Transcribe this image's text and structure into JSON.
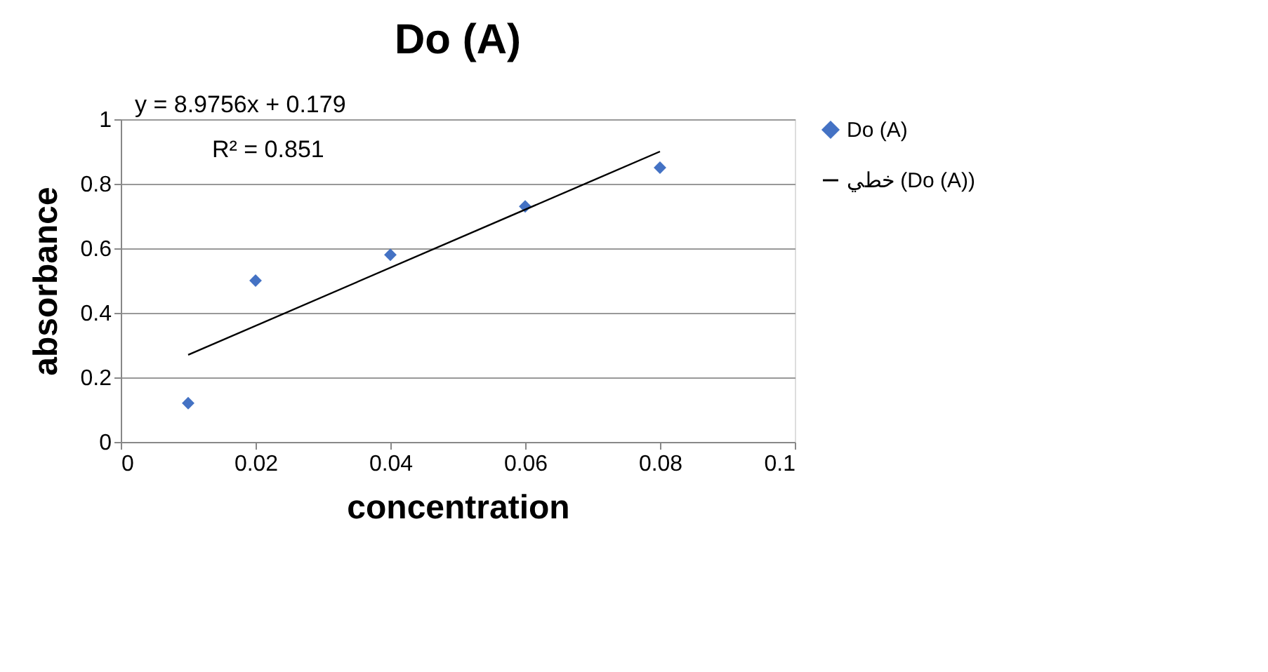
{
  "chart_data": {
    "type": "scatter",
    "title": "Do (A)",
    "xlabel": "concentration",
    "ylabel": "absorbance",
    "xlim": [
      0,
      0.1
    ],
    "xticks": [
      0,
      0.02,
      0.04,
      0.06,
      0.08,
      0.1
    ],
    "ylim": [
      0,
      1
    ],
    "yticks": [
      0,
      0.2,
      0.4,
      0.6,
      0.8,
      1
    ],
    "grid": "y",
    "legend": "right",
    "annotations": [
      "y = 8.9756x + 0.179",
      "R² = 0.851"
    ],
    "series": [
      {
        "name": "Do (A)",
        "type": "scatter",
        "marker": "diamond",
        "color": "#4472c4",
        "x": [
          0.01,
          0.02,
          0.04,
          0.06,
          0.08
        ],
        "values": [
          0.12,
          0.5,
          0.58,
          0.73,
          0.85
        ]
      },
      {
        "name": "خطي (Do (A))",
        "type": "line",
        "color": "#000000",
        "line_style": "solid",
        "x": [
          0.01,
          0.08
        ],
        "values": [
          0.27,
          0.9
        ]
      }
    ]
  }
}
